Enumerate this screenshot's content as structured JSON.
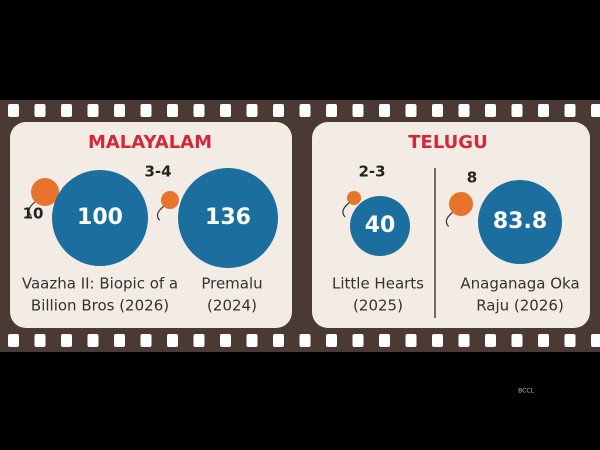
{
  "panels": [
    {
      "title": "MALAYALAM",
      "films": [
        {
          "small": 10,
          "big": 100,
          "caption": [
            "Vaazha II: Biopic of a",
            "Billion Bros (2026)"
          ]
        },
        {
          "small": "3-4",
          "big": 136,
          "caption": [
            "Premalu",
            "(2024)"
          ]
        }
      ]
    },
    {
      "title": "TELUGU",
      "films": [
        {
          "small": "2-3",
          "big": 40,
          "caption": [
            "Little Hearts",
            "(2025)"
          ]
        },
        {
          "small": 8,
          "big": 83.8,
          "caption": [
            "Anaganaga Oka",
            "Raju (2026)"
          ]
        }
      ]
    }
  ],
  "credit": "BCCL"
}
